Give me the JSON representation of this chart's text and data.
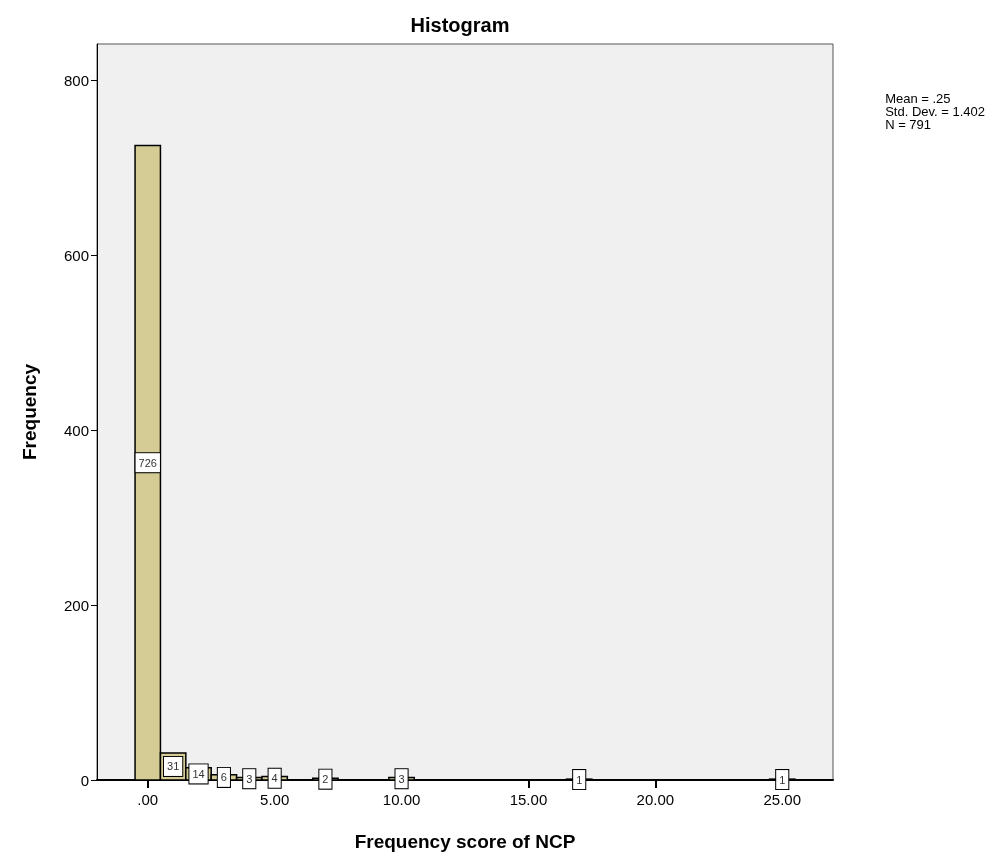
{
  "chart_data": {
    "type": "histogram",
    "title": "Histogram",
    "xlabel": "Frequency score of NCP",
    "ylabel": "Frequency",
    "bins": [
      -0.5,
      0.5,
      1.5,
      2.5,
      3.5,
      4.5,
      5.5,
      6.5,
      7.5,
      8.5,
      9.5,
      10.5,
      11.5,
      12.5,
      13.5,
      14.5,
      15.5,
      16.5,
      17.5,
      18.5,
      19.5,
      20.5,
      21.5,
      22.5,
      23.5,
      24.5,
      25.5
    ],
    "values": [
      726,
      31,
      14,
      6,
      3,
      4,
      0,
      2,
      0,
      0,
      3,
      0,
      0,
      0,
      0,
      0,
      0,
      1,
      0,
      0,
      0,
      0,
      0,
      0,
      0,
      1
    ],
    "color": "#d4cc94",
    "xlim": [
      -2,
      27
    ],
    "xticks": [
      {
        "value": 0,
        "label": ".00"
      },
      {
        "value": 5,
        "label": "5.00"
      },
      {
        "value": 10,
        "label": "10.00"
      },
      {
        "value": 15,
        "label": "15.00"
      },
      {
        "value": 20,
        "label": "20.00"
      },
      {
        "value": 25,
        "label": "25.00"
      }
    ],
    "ylim": [
      0,
      842
    ],
    "yticks": [
      0,
      200,
      400,
      600,
      800
    ],
    "value_labels": [
      "726",
      "31",
      "14",
      "6",
      "3",
      "4",
      null,
      "2",
      null,
      null,
      "3",
      null,
      null,
      null,
      null,
      null,
      null,
      "1",
      null,
      null,
      null,
      null,
      null,
      null,
      null,
      "1"
    ],
    "annotations": [
      "Mean = .25\nStd. Dev. = 1.402\nN = 791"
    ]
  }
}
